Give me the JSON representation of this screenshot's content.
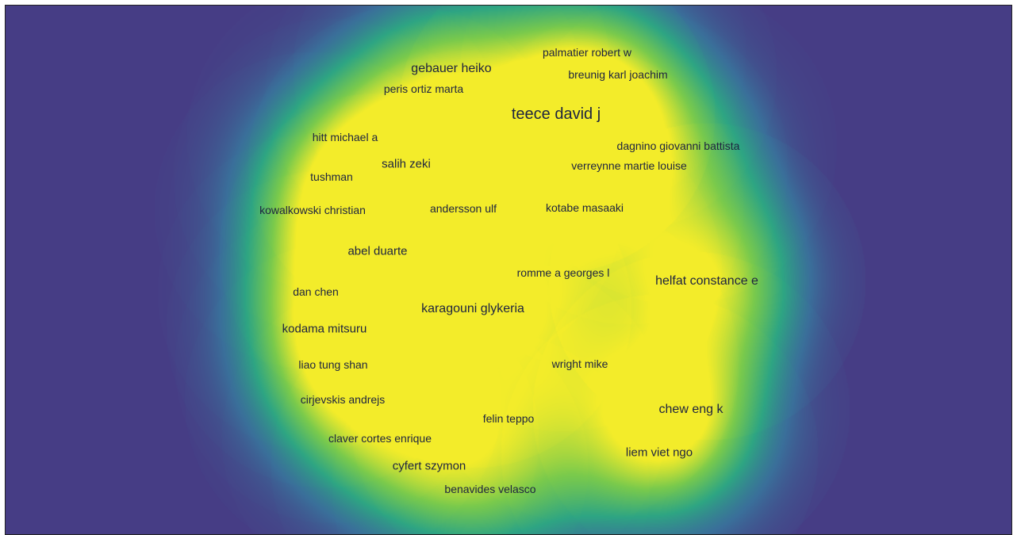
{
  "colors": {
    "background": "#463d85",
    "density_low": "#3a6f9a",
    "density_mid": "#2ea583",
    "density_high": "#f3ec2a",
    "label": "#1d2340"
  },
  "nodes": [
    {
      "label": "palmatier robert w",
      "weight": 0.25
    },
    {
      "label": "gebauer heiko",
      "weight": 0.45
    },
    {
      "label": "breunig karl joachim",
      "weight": 0.45
    },
    {
      "label": "peris ortiz marta",
      "weight": 0.35
    },
    {
      "label": "teece david j",
      "weight": 1.0
    },
    {
      "label": "hitt michael a",
      "weight": 0.35
    },
    {
      "label": "dagnino giovanni battista",
      "weight": 0.4
    },
    {
      "label": "salih zeki",
      "weight": 0.55
    },
    {
      "label": "verreynne martie louise",
      "weight": 0.35
    },
    {
      "label": "tushman",
      "weight": 0.35
    },
    {
      "label": "kowalkowski christian",
      "weight": 0.4
    },
    {
      "label": "andersson ulf",
      "weight": 0.35
    },
    {
      "label": "kotabe masaaki",
      "weight": 0.35
    },
    {
      "label": "abel duarte",
      "weight": 0.55
    },
    {
      "label": "romme a georges l",
      "weight": 0.4
    },
    {
      "label": "helfat constance e",
      "weight": 1.0
    },
    {
      "label": "dan chen",
      "weight": 0.35
    },
    {
      "label": "karagouni glykeria",
      "weight": 0.7
    },
    {
      "label": "kodama mitsuru",
      "weight": 0.45
    },
    {
      "label": "liao tung shan",
      "weight": 0.35
    },
    {
      "label": "wright mike",
      "weight": 0.45
    },
    {
      "label": "cirjevskis andrejs",
      "weight": 0.45
    },
    {
      "label": "chew eng k",
      "weight": 0.75
    },
    {
      "label": "felin teppo",
      "weight": 0.45
    },
    {
      "label": "claver cortes enrique",
      "weight": 0.35
    },
    {
      "label": "liem viet ngo",
      "weight": 0.7
    },
    {
      "label": "cyfert szymon",
      "weight": 0.45
    },
    {
      "label": "benavides velasco",
      "weight": 0.35
    }
  ]
}
